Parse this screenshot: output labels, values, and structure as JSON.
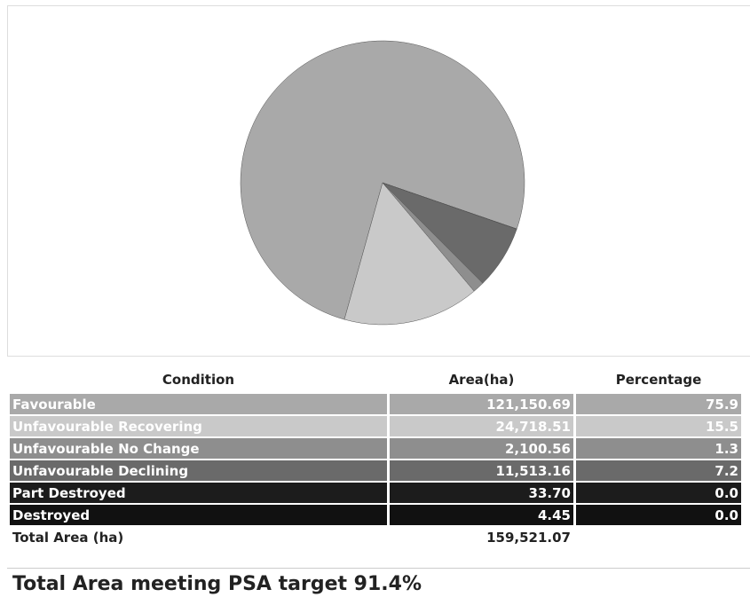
{
  "chart_data": {
    "type": "pie",
    "categories": [
      "Favourable",
      "Unfavourable Recovering",
      "Unfavourable No Change",
      "Unfavourable Declining",
      "Part Destroyed",
      "Destroyed"
    ],
    "values": [
      121150.69,
      24718.51,
      2100.56,
      11513.16,
      33.7,
      4.45
    ],
    "value_labels": [
      "121,150.69",
      "24,718.51",
      "2,100.56",
      "11,513.16",
      "33.70",
      "4.45"
    ],
    "colors": [
      "#a9a9a9",
      "#c9c9c9",
      "#8e8e8e",
      "#6a6a6a",
      "#1c1c1c",
      "#111111"
    ]
  },
  "table": {
    "headers": [
      "Condition",
      "Area(ha)",
      "Percentage"
    ],
    "percentages": [
      "75.9",
      "15.5",
      "1.3",
      "7.2",
      "0.0",
      "0.0"
    ],
    "total_label": "Total Area (ha)",
    "total_area": "159,521.07"
  },
  "footer": "Total Area meeting PSA target 91.4%"
}
